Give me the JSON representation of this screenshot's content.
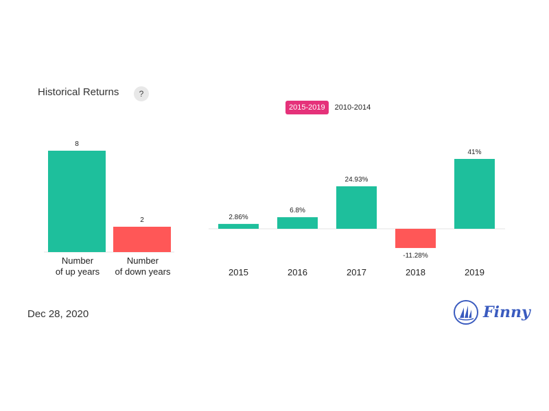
{
  "header": {
    "title": "Historical Returns",
    "help_label": "?",
    "tabs": [
      {
        "label": "2015-2019",
        "active": true
      },
      {
        "label": "2010-2014",
        "active": false
      }
    ]
  },
  "footer": {
    "date": "Dec 28, 2020",
    "logo_text": "Finny"
  },
  "colors": {
    "positive": "#1ebf9c",
    "negative": "#ff5757",
    "tab_active": "#e5327a",
    "logo": "#3a5bbf"
  },
  "chart_data": [
    {
      "type": "bar",
      "categories": [
        [
          "Number",
          "of up years"
        ],
        [
          "Number",
          "of down years"
        ]
      ],
      "values": [
        8,
        2
      ],
      "value_labels": [
        "8",
        "2"
      ],
      "ylim": [
        0,
        8
      ]
    },
    {
      "type": "bar",
      "categories": [
        "2015",
        "2016",
        "2017",
        "2018",
        "2019"
      ],
      "values": [
        2.86,
        6.8,
        24.93,
        -11.28,
        41
      ],
      "value_labels": [
        "2.86%",
        "6.8%",
        "24.93%",
        "-11.28%",
        "41%"
      ],
      "ylim": [
        -11.28,
        41
      ]
    }
  ]
}
